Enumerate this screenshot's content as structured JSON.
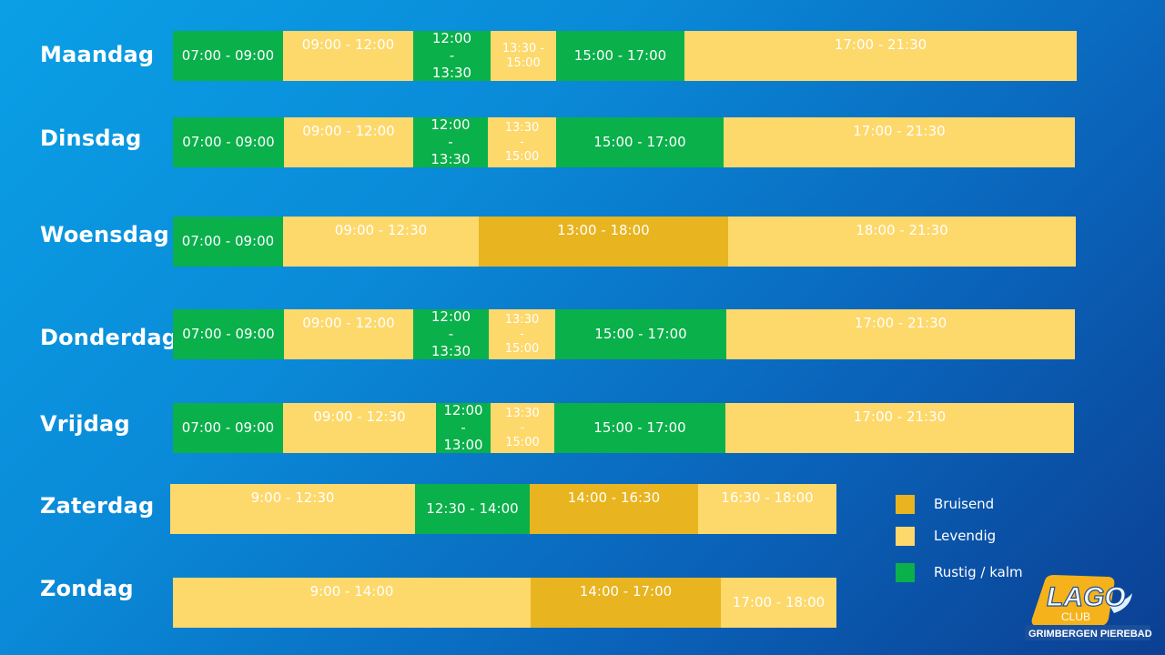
{
  "schedule": [
    {
      "day": "Maandag",
      "segments": [
        {
          "time": "07:00 - 09:00",
          "level": "rustig"
        },
        {
          "time": "09:00 - 12:00",
          "level": "levendig"
        },
        {
          "time": "12:00\n-\n13:30",
          "level": "rustig"
        },
        {
          "time": "13:30 -\n15:00",
          "level": "levendig"
        },
        {
          "time": "15:00 - 17:00",
          "level": "rustig"
        },
        {
          "time": "17:00 - 21:30",
          "level": "levendig"
        }
      ]
    },
    {
      "day": "Dinsdag",
      "segments": [
        {
          "time": "07:00 - 09:00",
          "level": "rustig"
        },
        {
          "time": "09:00 - 12:00",
          "level": "levendig"
        },
        {
          "time": "12:00\n-\n13:30",
          "level": "rustig"
        },
        {
          "time": "13:30\n-\n15:00",
          "level": "levendig"
        },
        {
          "time": "15:00 - 17:00",
          "level": "rustig"
        },
        {
          "time": "17:00 - 21:30",
          "level": "levendig"
        }
      ]
    },
    {
      "day": "Woensdag",
      "segments": [
        {
          "time": "07:00 - 09:00",
          "level": "rustig"
        },
        {
          "time": "09:00 - 12:30",
          "level": "levendig"
        },
        {
          "time": "13:00 - 18:00",
          "level": "bruisend"
        },
        {
          "time": "18:00 - 21:30",
          "level": "levendig"
        }
      ]
    },
    {
      "day": "Donderdag",
      "segments": [
        {
          "time": "07:00 - 09:00",
          "level": "rustig"
        },
        {
          "time": "09:00 - 12:00",
          "level": "levendig"
        },
        {
          "time": "12:00\n-\n13:30",
          "level": "rustig"
        },
        {
          "time": "13:30\n-\n15:00",
          "level": "levendig"
        },
        {
          "time": "15:00 - 17:00",
          "level": "rustig"
        },
        {
          "time": "17:00 - 21:30",
          "level": "levendig"
        }
      ]
    },
    {
      "day": "Vrijdag",
      "segments": [
        {
          "time": "07:00 - 09:00",
          "level": "rustig"
        },
        {
          "time": "09:00 - 12:30",
          "level": "levendig"
        },
        {
          "time": "12:00\n-\n13:00",
          "level": "rustig"
        },
        {
          "time": "13:30\n-\n15:00",
          "level": "levendig"
        },
        {
          "time": "15:00 - 17:00",
          "level": "rustig"
        },
        {
          "time": "17:00 - 21:30",
          "level": "levendig"
        }
      ]
    },
    {
      "day": "Zaterdag",
      "segments": [
        {
          "time": "9:00 - 12:30",
          "level": "levendig"
        },
        {
          "time": "12:30 - 14:00",
          "level": "rustig"
        },
        {
          "time": "14:00 - 16:30",
          "level": "bruisend"
        },
        {
          "time": "16:30 - 18:00",
          "level": "levendig"
        }
      ]
    },
    {
      "day": "Zondag",
      "segments": [
        {
          "time": "9:00 - 14:00",
          "level": "levendig"
        },
        {
          "time": "14:00 - 17:00",
          "level": "bruisend"
        },
        {
          "time": "17:00 - 18:00",
          "level": "levendig"
        }
      ]
    }
  ],
  "legend": [
    {
      "label": "Bruisend",
      "color": "#e8b41f"
    },
    {
      "label": "Levendig",
      "color": "#fdd86b"
    },
    {
      "label": "Rustig / kalm",
      "color": "#0ab04a"
    }
  ],
  "logo": {
    "brand": "LAGO",
    "sub": "CLUB",
    "location": "GRIMBERGEN",
    "name": "PIEREBAD"
  }
}
